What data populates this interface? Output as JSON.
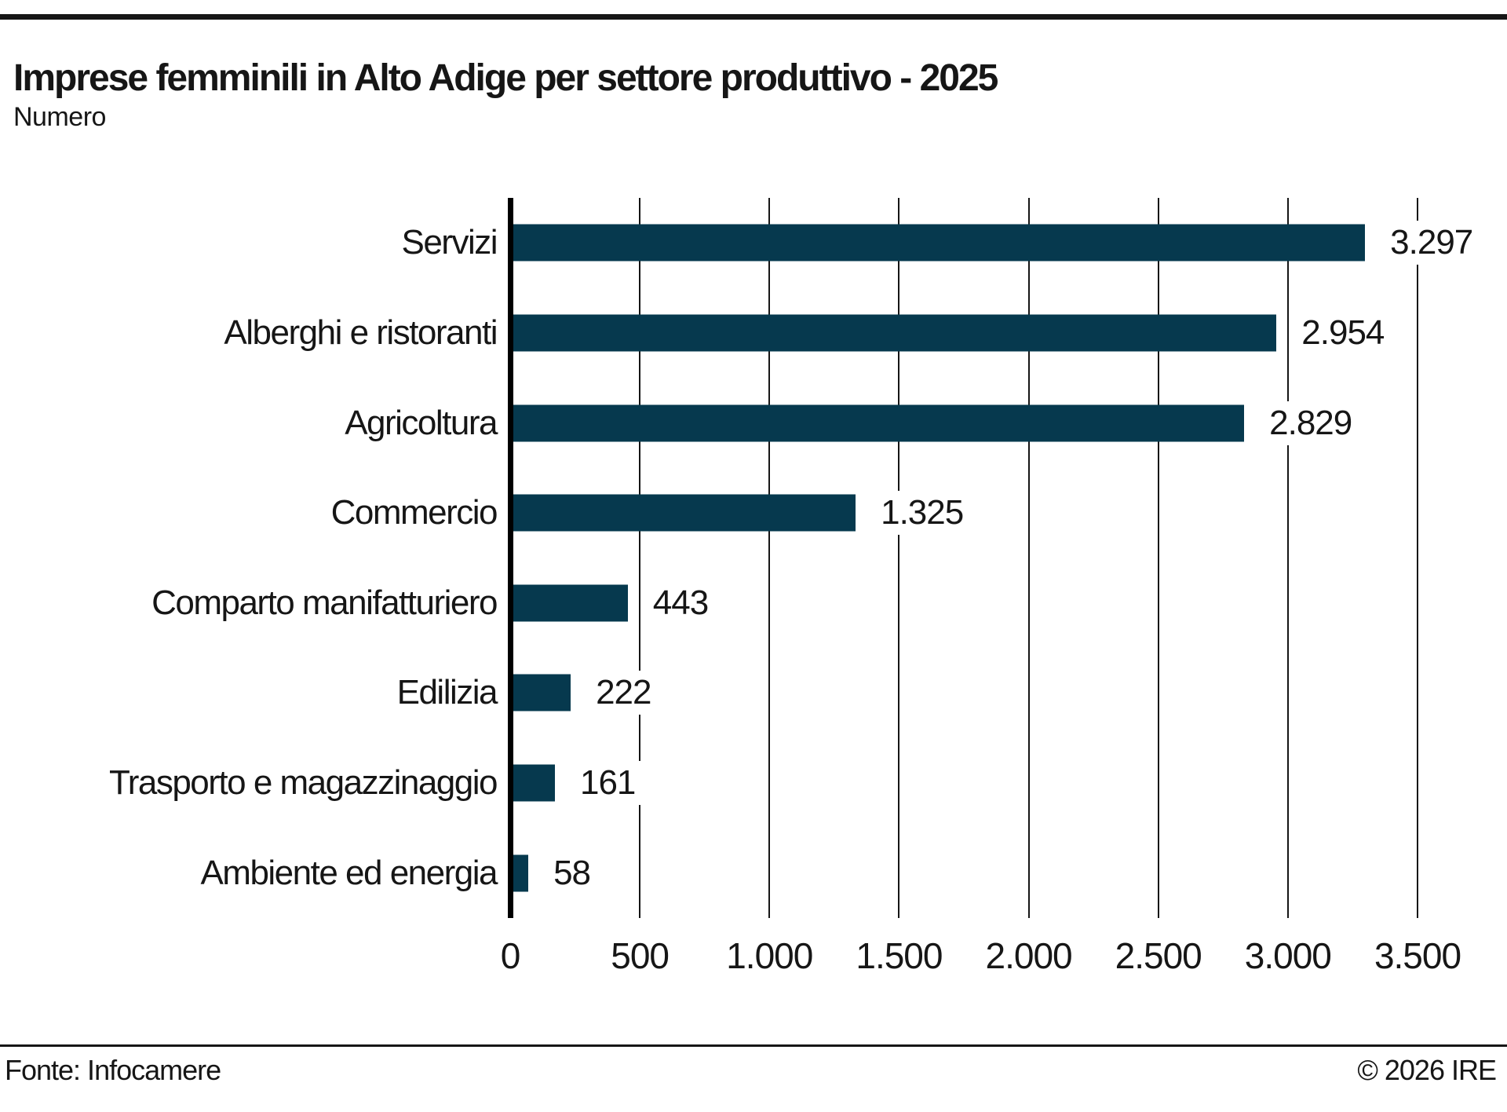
{
  "page": {
    "title": "Imprese femminili in Alto Adige per settore produttivo - 2025",
    "subtitle": "Numero",
    "footer_left": "Fonte: Infocamere",
    "footer_right": "© 2026 IRE"
  },
  "colors": {
    "bar": "#06394e",
    "rule": "#161616",
    "text": "#161616",
    "axis": "#000000",
    "background": "#ffffff"
  },
  "chart_data": {
    "type": "bar",
    "orientation": "horizontal",
    "title": "Imprese femminili in Alto Adige per settore produttivo - 2025",
    "subtitle": "Numero",
    "categories": [
      "Servizi",
      "Alberghi e ristoranti",
      "Agricoltura",
      "Commercio",
      "Comparto manifatturiero",
      "Edilizia",
      "Trasporto e magazzinaggio",
      "Ambiente ed energia"
    ],
    "values": [
      3297,
      2954,
      2829,
      1325,
      443,
      222,
      161,
      58
    ],
    "value_labels": [
      "3.297",
      "2.954",
      "2.829",
      "1.325",
      "443",
      "222",
      "161",
      "58"
    ],
    "xlim": [
      0,
      3500
    ],
    "x_ticks": [
      0,
      500,
      1000,
      1500,
      2000,
      2500,
      3000,
      3500
    ],
    "x_tick_labels": [
      "0",
      "500",
      "1.000",
      "1.500",
      "2.000",
      "2.500",
      "3.000",
      "3.500"
    ],
    "grid": "vertical",
    "legend": "none",
    "bar_color": "#06394e"
  }
}
